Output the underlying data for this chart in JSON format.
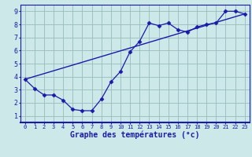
{
  "title": "Graphe des températures (°c)",
  "background_color": "#cce8e8",
  "grid_color": "#99bbbb",
  "line_color": "#1a1aaa",
  "xlim": [
    -0.5,
    23.5
  ],
  "ylim": [
    0.5,
    9.5
  ],
  "xticks": [
    0,
    1,
    2,
    3,
    4,
    5,
    6,
    7,
    8,
    9,
    10,
    11,
    12,
    13,
    14,
    15,
    16,
    17,
    18,
    19,
    20,
    21,
    22,
    23
  ],
  "yticks": [
    1,
    2,
    3,
    4,
    5,
    6,
    7,
    8,
    9
  ],
  "curve_x": [
    0,
    1,
    2,
    3,
    4,
    5,
    6,
    7,
    8,
    9,
    10,
    11,
    12,
    13,
    14,
    15,
    16,
    17,
    18,
    19,
    20,
    21,
    22,
    23
  ],
  "curve_y": [
    3.8,
    3.1,
    2.6,
    2.6,
    2.2,
    1.5,
    1.4,
    1.4,
    2.3,
    3.6,
    4.4,
    5.9,
    6.7,
    8.1,
    7.9,
    8.1,
    7.6,
    7.4,
    7.8,
    8.0,
    8.1,
    9.0,
    9.0,
    8.8
  ],
  "line_x": [
    0,
    23
  ],
  "line_y": [
    3.8,
    8.8
  ],
  "xlabel_fontsize": 7,
  "ylabel_fontsize": 6,
  "tick_fontsize": 5
}
